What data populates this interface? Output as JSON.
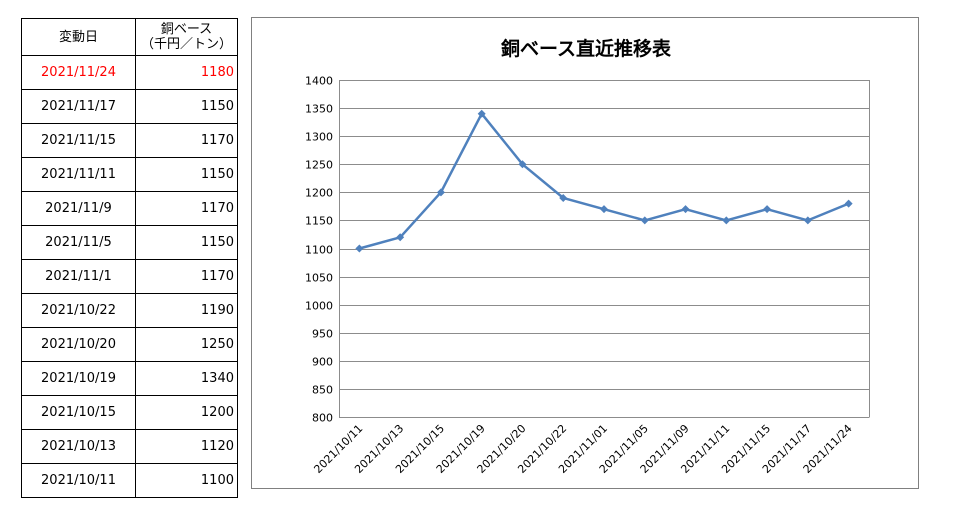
{
  "table": {
    "header_date": "変動日",
    "header_value_line1": "銅ベース",
    "header_value_line2": "（千円／トン）",
    "rows": [
      {
        "date": "2021/11/24",
        "value": "1180",
        "highlight": true
      },
      {
        "date": "2021/11/17",
        "value": "1150",
        "highlight": false
      },
      {
        "date": "2021/11/15",
        "value": "1170",
        "highlight": false
      },
      {
        "date": "2021/11/11",
        "value": "1150",
        "highlight": false
      },
      {
        "date": "2021/11/9",
        "value": "1170",
        "highlight": false
      },
      {
        "date": "2021/11/5",
        "value": "1150",
        "highlight": false
      },
      {
        "date": "2021/11/1",
        "value": "1170",
        "highlight": false
      },
      {
        "date": "2021/10/22",
        "value": "1190",
        "highlight": false
      },
      {
        "date": "2021/10/20",
        "value": "1250",
        "highlight": false
      },
      {
        "date": "2021/10/19",
        "value": "1340",
        "highlight": false
      },
      {
        "date": "2021/10/15",
        "value": "1200",
        "highlight": false
      },
      {
        "date": "2021/10/13",
        "value": "1120",
        "highlight": false
      },
      {
        "date": "2021/10/11",
        "value": "1100",
        "highlight": false
      }
    ],
    "highlight_color": "#ff0000"
  },
  "chart_data": {
    "type": "line",
    "title": "銅ベース直近推移表",
    "categories": [
      "2021/10/11",
      "2021/10/13",
      "2021/10/15",
      "2021/10/19",
      "2021/10/20",
      "2021/10/22",
      "2021/11/01",
      "2021/11/05",
      "2021/11/09",
      "2021/11/11",
      "2021/11/15",
      "2021/11/17",
      "2021/11/24"
    ],
    "series": [
      {
        "values": [
          1100,
          1120,
          1200,
          1340,
          1250,
          1190,
          1170,
          1150,
          1170,
          1150,
          1170,
          1150,
          1180
        ],
        "color": "#4f81bd"
      }
    ],
    "ylim": [
      800,
      1400
    ],
    "ytick_step": 50,
    "grid": true,
    "legend": "none",
    "xlabel": "",
    "ylabel": ""
  }
}
